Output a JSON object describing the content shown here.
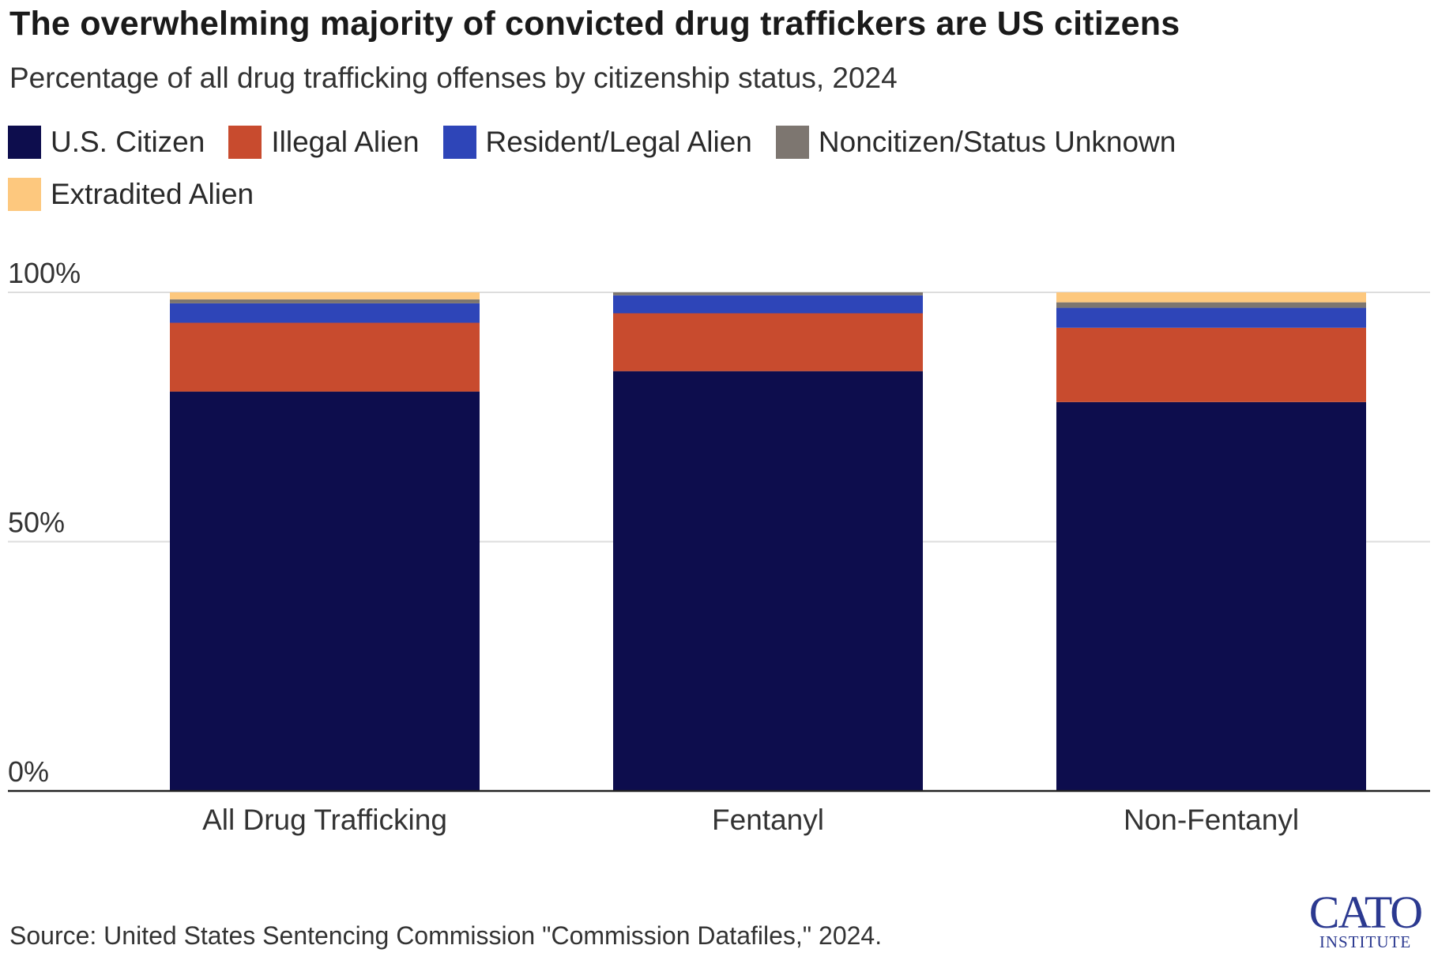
{
  "title": "The overwhelming majority of convicted drug traffickers are US citizens",
  "subtitle": "Percentage of all drug trafficking offenses by citizenship status, 2024",
  "source": "Source: United States Sentencing Commission \"Commission Datafiles,\" 2024.",
  "logo": {
    "word": "CATO",
    "sub": "INSTITUTE"
  },
  "colors": {
    "us_citizen": "#0d0d4d",
    "illegal_alien": "#c84b2e",
    "resident_legal_alien": "#2e45b8",
    "noncitizen_unknown": "#7d7670",
    "extradited_alien": "#fdc87e",
    "grid": "#dddddd",
    "axis": "#222222"
  },
  "chart_data": {
    "type": "bar",
    "stacked": true,
    "categories": [
      "All Drug Trafficking",
      "Fentanyl",
      "Non-Fentanyl"
    ],
    "series": [
      {
        "name": "U.S. Citizen",
        "color": "#0d0d4d",
        "values": [
          80.1,
          84.2,
          78.0
        ]
      },
      {
        "name": "Illegal Alien",
        "color": "#c84b2e",
        "values": [
          13.8,
          11.6,
          14.9
        ]
      },
      {
        "name": "Resident/Legal Alien",
        "color": "#2e45b8",
        "values": [
          3.9,
          3.6,
          4.0
        ]
      },
      {
        "name": "Noncitizen/Status Unknown",
        "color": "#7d7670",
        "values": [
          0.8,
          0.6,
          1.1
        ]
      },
      {
        "name": "Extradited Alien",
        "color": "#fdc87e",
        "values": [
          1.4,
          0.0,
          2.0
        ]
      }
    ],
    "yticks": [
      {
        "value": 0,
        "label": "0%"
      },
      {
        "value": 50,
        "label": "50%"
      },
      {
        "value": 100,
        "label": "100%"
      }
    ],
    "ylim": [
      0,
      100
    ],
    "grid": true,
    "legend_position": "top-left"
  }
}
